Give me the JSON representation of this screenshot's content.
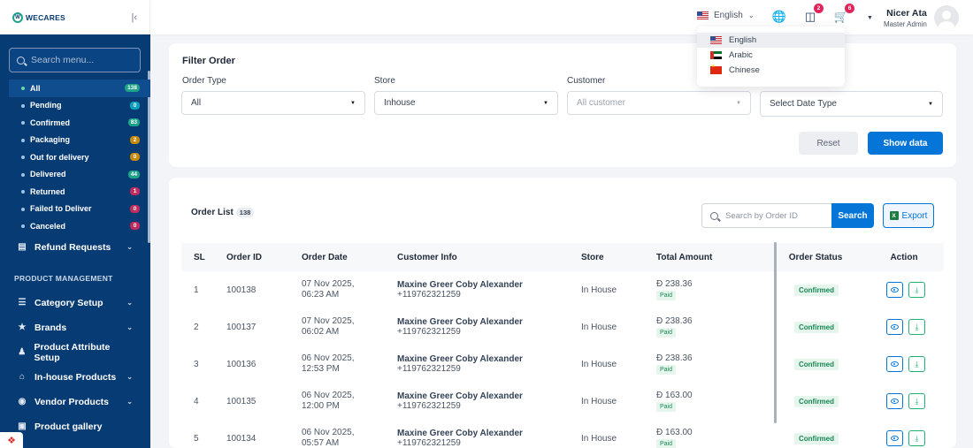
{
  "brand": {
    "name": "WECARES",
    "mark": "W"
  },
  "sidebar": {
    "search_placeholder": "Search menu...",
    "order_statuses": [
      {
        "label": "All",
        "count": "138",
        "color": "#1ca38a",
        "active": true
      },
      {
        "label": "Pending",
        "count": "0",
        "color": "#0aa2c0"
      },
      {
        "label": "Confirmed",
        "count": "83",
        "color": "#1ca38a"
      },
      {
        "label": "Packaging",
        "count": "2",
        "color": "#c98a0c"
      },
      {
        "label": "Out for delivery",
        "count": "0",
        "color": "#c98a0c"
      },
      {
        "label": "Delivered",
        "count": "44",
        "color": "#1ca38a"
      },
      {
        "label": "Returned",
        "count": "1",
        "color": "#c22b5e"
      },
      {
        "label": "Failed to Deliver",
        "count": "0",
        "color": "#c22b5e"
      },
      {
        "label": "Canceled",
        "count": "0",
        "color": "#c22b5e"
      }
    ],
    "refund_label": "Refund Requests",
    "product_section_title": "PRODUCT MANAGEMENT",
    "product_items": [
      {
        "label": "Category Setup",
        "icon": "filter-icon",
        "has_chevron": true
      },
      {
        "label": "Brands",
        "icon": "star-icon",
        "has_chevron": true
      },
      {
        "label": "Product Attribute Setup",
        "icon": "attribute-icon",
        "has_chevron": false
      },
      {
        "label": "In-house Products",
        "icon": "store-icon",
        "has_chevron": true
      },
      {
        "label": "Vendor Products",
        "icon": "vendor-icon",
        "has_chevron": true
      },
      {
        "label": "Product gallery",
        "icon": "gallery-icon",
        "has_chevron": false
      }
    ]
  },
  "header": {
    "language": "English",
    "messages_count": "2",
    "cart_count": "6",
    "user_name": "Nicer Ata",
    "user_role": "Master Admin"
  },
  "language_menu": {
    "options": [
      {
        "label": "English",
        "flag": "us",
        "selected": true
      },
      {
        "label": "Arabic",
        "flag": "ae",
        "selected": false
      },
      {
        "label": "Chinese",
        "flag": "cn",
        "selected": false
      }
    ]
  },
  "filter": {
    "title": "Filter Order",
    "order_type_label": "Order Type",
    "order_type_value": "All",
    "store_label": "Store",
    "store_value": "Inhouse",
    "customer_label": "Customer",
    "customer_placeholder": "All customer",
    "date_type_value": "Select Date Type",
    "reset_label": "Reset",
    "show_label": "Show data"
  },
  "order_list": {
    "title": "Order List",
    "count": "138",
    "search_placeholder": "Search by Order ID",
    "search_label": "Search",
    "export_label": "Export",
    "columns": [
      "SL",
      "Order ID",
      "Order Date",
      "Customer Info",
      "Store",
      "Total Amount",
      "Order Status",
      "Action"
    ],
    "currency_symbol": "Đ",
    "rows": [
      {
        "sl": "1",
        "id": "100138",
        "date": "07 Nov 2025,",
        "time": "06:23 AM",
        "customer": "Maxine Greer Coby Alexander",
        "phone": "+119762321259",
        "store": "In House",
        "amount": "238.36",
        "payment": "Paid",
        "status": "Confirmed"
      },
      {
        "sl": "2",
        "id": "100137",
        "date": "07 Nov 2025,",
        "time": "06:02 AM",
        "customer": "Maxine Greer Coby Alexander",
        "phone": "+119762321259",
        "store": "In House",
        "amount": "238.36",
        "payment": "Paid",
        "status": "Confirmed"
      },
      {
        "sl": "3",
        "id": "100136",
        "date": "06 Nov 2025,",
        "time": "12:53 PM",
        "customer": "Maxine Greer Coby Alexander",
        "phone": "+119762321259",
        "store": "In House",
        "amount": "238.36",
        "payment": "Paid",
        "status": "Confirmed"
      },
      {
        "sl": "4",
        "id": "100135",
        "date": "06 Nov 2025,",
        "time": "12:00 PM",
        "customer": "Maxine Greer Coby Alexander",
        "phone": "+119762321259",
        "store": "In House",
        "amount": "163.00",
        "payment": "Paid",
        "status": "Confirmed"
      },
      {
        "sl": "5",
        "id": "100134",
        "date": "06 Nov 2025,",
        "time": "05:57 AM",
        "customer": "Maxine Greer Coby Alexander",
        "phone": "+119762321259",
        "store": "In House",
        "amount": "163.00",
        "payment": "Paid",
        "status": "Confirmed"
      }
    ]
  }
}
